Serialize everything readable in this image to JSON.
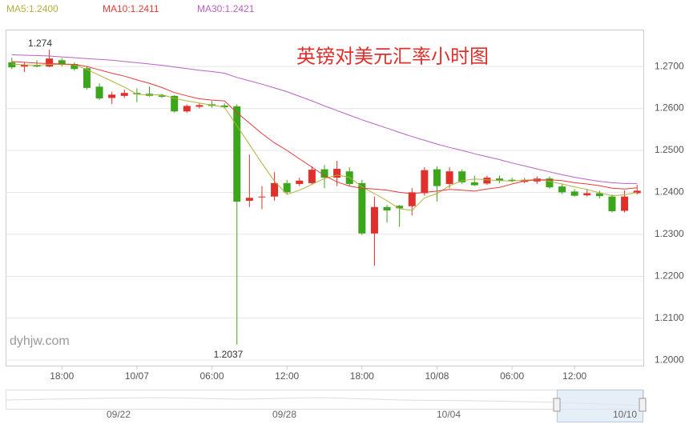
{
  "chart_data": {
    "type": "candlestick",
    "title": "英镑对美元汇率小时图",
    "watermark": "dyhjw.com",
    "annotations": [
      "1.274",
      "1.2037"
    ],
    "up_color": "#e0302b",
    "down_color": "#3ba51c",
    "categories": [
      null,
      null,
      null,
      null,
      "18:00",
      null,
      null,
      null,
      null,
      null,
      "10/07",
      null,
      null,
      null,
      null,
      null,
      "06:00",
      null,
      null,
      null,
      null,
      null,
      "12:00",
      null,
      null,
      null,
      null,
      null,
      "18:00",
      null,
      null,
      null,
      null,
      null,
      "10/08",
      null,
      null,
      null,
      null,
      null,
      "06:00",
      null,
      null,
      null,
      null,
      "12:00",
      null,
      null,
      null,
      null,
      null
    ],
    "open": [
      1.271,
      1.27,
      1.2704,
      1.27,
      1.2715,
      1.2706,
      1.2696,
      1.2652,
      1.2625,
      1.263,
      1.2637,
      1.2635,
      1.2631,
      1.263,
      1.2593,
      1.2604,
      1.261,
      1.2607,
      1.2605,
      1.238,
      1.2388,
      1.239,
      1.2422,
      1.242,
      1.2422,
      1.2455,
      1.2435,
      1.245,
      1.2422,
      1.2302,
      1.2365,
      1.2368,
      1.2367,
      1.2398,
      1.2455,
      1.242,
      1.245,
      1.2424,
      1.2421,
      1.2433,
      1.243,
      1.2425,
      1.2426,
      1.2433,
      1.2414,
      1.2402,
      1.2393,
      1.2398,
      1.239,
      1.2356,
      1.2398
    ],
    "high": [
      1.2721,
      1.271,
      1.2715,
      1.274,
      1.272,
      1.271,
      1.27,
      1.266,
      1.264,
      1.2645,
      1.2648,
      1.2652,
      1.2635,
      1.2632,
      1.261,
      1.2612,
      1.2618,
      1.2612,
      1.261,
      1.249,
      1.2415,
      1.2448,
      1.243,
      1.2435,
      1.2462,
      1.2465,
      1.2475,
      1.246,
      1.243,
      1.239,
      1.237,
      1.237,
      1.241,
      1.246,
      1.2462,
      1.246,
      1.2455,
      1.244,
      1.244,
      1.244,
      1.2435,
      1.2434,
      1.2438,
      1.2438,
      1.242,
      1.2408,
      1.2408,
      1.2404,
      1.2395,
      1.2405,
      1.2418
    ],
    "low": [
      1.2694,
      1.2687,
      1.2698,
      1.2698,
      1.27,
      1.269,
      1.2645,
      1.262,
      1.261,
      1.2625,
      1.2615,
      1.2628,
      1.2625,
      1.259,
      1.259,
      1.26,
      1.2602,
      1.26,
      1.2037,
      1.2365,
      1.236,
      1.238,
      1.2395,
      1.2415,
      1.2418,
      1.241,
      1.2415,
      1.2415,
      1.2298,
      1.2225,
      1.2328,
      1.2318,
      1.2345,
      1.2392,
      1.2378,
      1.241,
      1.242,
      1.2415,
      1.2418,
      1.2422,
      1.2424,
      1.2422,
      1.242,
      1.2408,
      1.2396,
      1.239,
      1.239,
      1.2385,
      1.2352,
      1.2352,
      1.2395
    ],
    "close": [
      1.2698,
      1.2704,
      1.27,
      1.2719,
      1.2704,
      1.2694,
      1.2649,
      1.2624,
      1.2633,
      1.2637,
      1.2634,
      1.263,
      1.2628,
      1.2593,
      1.2606,
      1.2608,
      1.2606,
      1.2603,
      1.2378,
      1.2387,
      1.239,
      1.2422,
      1.24,
      1.2428,
      1.2454,
      1.2435,
      1.2456,
      1.242,
      1.2302,
      1.2365,
      1.2357,
      1.2362,
      1.24,
      1.2453,
      1.2415,
      1.245,
      1.2424,
      1.2417,
      1.2435,
      1.2428,
      1.2427,
      1.243,
      1.2433,
      1.2412,
      1.24,
      1.2392,
      1.2398,
      1.2391,
      1.2355,
      1.239,
      1.2404
    ],
    "series": [
      {
        "name": "MA5:1.2400",
        "color": "#b3b13c",
        "values": [
          1.2706,
          1.2704,
          1.2703,
          1.2705,
          1.2705,
          1.2704,
          1.2693,
          1.2679,
          1.2665,
          1.2651,
          1.2634,
          1.2632,
          1.2633,
          1.2624,
          1.2618,
          1.2613,
          1.2608,
          1.2603,
          1.2559,
          1.2514,
          1.2469,
          1.2427,
          1.2395,
          1.2405,
          1.2419,
          1.2433,
          1.2441,
          1.2436,
          1.2413,
          1.2397,
          1.238,
          1.2361,
          1.2357,
          1.2387,
          1.2397,
          1.2416,
          1.2428,
          1.2432,
          1.243,
          1.2428,
          1.2427,
          1.2429,
          1.2431,
          1.2426,
          1.242,
          1.2413,
          1.2407,
          1.2399,
          1.2392,
          1.2394,
          1.24
        ]
      },
      {
        "name": "MA10:1.2411",
        "color": "#e8393b",
        "values": [
          1.2712,
          1.271,
          1.2708,
          1.2707,
          1.2706,
          1.2705,
          1.27,
          1.2692,
          1.2684,
          1.2677,
          1.2668,
          1.266,
          1.265,
          1.2638,
          1.263,
          1.2623,
          1.262,
          1.2618,
          1.259,
          1.2565,
          1.254,
          1.2518,
          1.25,
          1.248,
          1.246,
          1.244,
          1.2425,
          1.2415,
          1.241,
          1.2408,
          1.2405,
          1.24,
          1.2397,
          1.24,
          1.2403,
          1.2407,
          1.2405,
          1.2403,
          1.2408,
          1.2412,
          1.242,
          1.2427,
          1.243,
          1.243,
          1.2428,
          1.2423,
          1.242,
          1.2416,
          1.241,
          1.2408,
          1.2411
        ]
      },
      {
        "name": "MA30:1.2421",
        "color": "#b761c4",
        "values": [
          1.2728,
          1.2727,
          1.2726,
          1.2725,
          1.2723,
          1.2721,
          1.2719,
          1.2717,
          1.2715,
          1.2712,
          1.2709,
          1.2706,
          1.2703,
          1.2699,
          1.2695,
          1.2691,
          1.2688,
          1.2684,
          1.2674,
          1.2666,
          1.2658,
          1.2649,
          1.264,
          1.2629,
          1.2618,
          1.2606,
          1.2595,
          1.2584,
          1.2573,
          1.2563,
          1.2553,
          1.2543,
          1.2533,
          1.2524,
          1.2515,
          1.2507,
          1.25,
          1.2492,
          1.2485,
          1.2478,
          1.247,
          1.2463,
          1.2456,
          1.2449,
          1.2442,
          1.2436,
          1.2431,
          1.2426,
          1.2423,
          1.2421,
          1.2421
        ]
      }
    ],
    "ylim": [
      1.1987,
      1.2788
    ],
    "yticks": [
      {
        "value": 1.2,
        "label": "1.2000"
      },
      {
        "value": 1.21,
        "label": "1.2100"
      },
      {
        "value": 1.22,
        "label": "1.2200"
      },
      {
        "value": 1.23,
        "label": "1.2300"
      },
      {
        "value": 1.24,
        "label": "1.2400"
      },
      {
        "value": 1.25,
        "label": "1.2500"
      },
      {
        "value": 1.26,
        "label": "1.2600"
      },
      {
        "value": 1.27,
        "label": "1.2700"
      }
    ],
    "grid": true,
    "navigator_labels": [
      "09/22",
      "09/28",
      "10/04",
      "10/10"
    ]
  }
}
